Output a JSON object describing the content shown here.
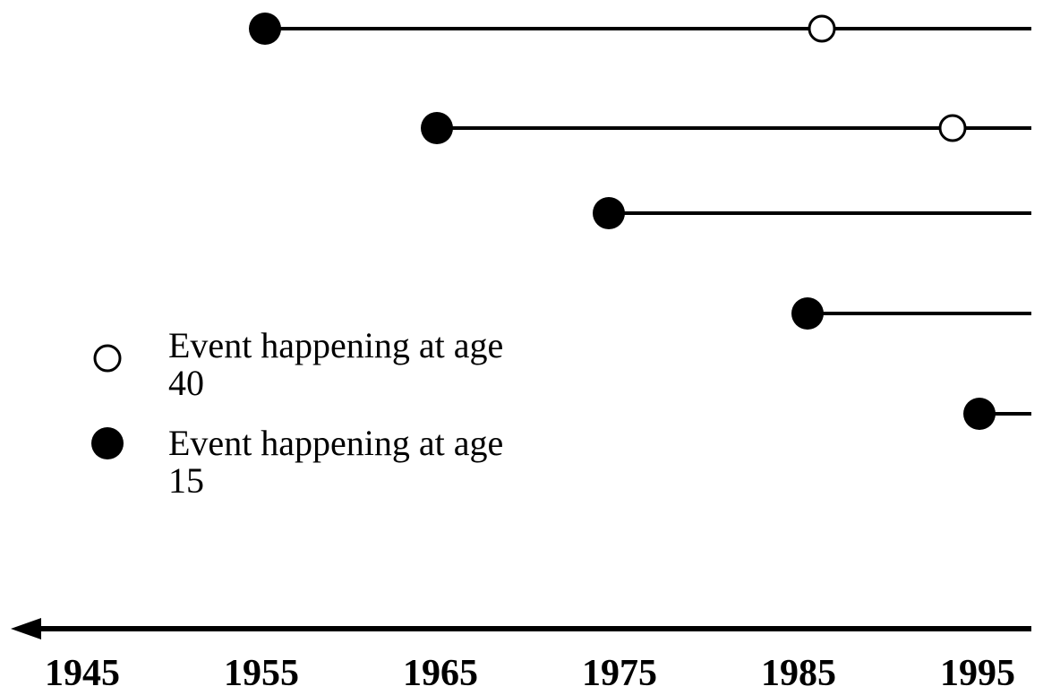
{
  "chart_data": {
    "type": "timeline",
    "series": [
      {
        "name": "Event happening at age 40",
        "marker": "hollow",
        "color": "#000000",
        "values": [
          1986.3,
          1993.6,
          null,
          null,
          null
        ]
      },
      {
        "name": "Event happening at age 15",
        "marker": "filled",
        "color": "#000000",
        "values": [
          1955.2,
          1964.8,
          1974.4,
          1985.5,
          1995.1
        ]
      }
    ],
    "xlim": [
      1941,
      1998
    ],
    "xticks": [
      1945,
      1955,
      1965,
      1975,
      1985,
      1995
    ],
    "legend": "left"
  }
}
